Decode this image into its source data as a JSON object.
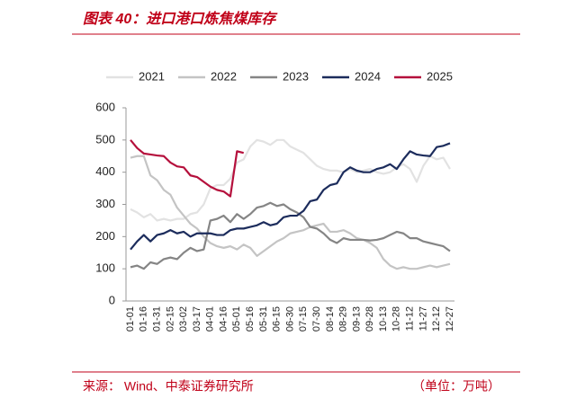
{
  "chart_data": {
    "type": "line",
    "title": "图表 40：进口港口炼焦煤库存",
    "source": "来源： Wind、中泰证券研究所",
    "unit_note": "（单位：万吨）",
    "categories": [
      "01-01",
      null,
      "01-16",
      null,
      "01-31",
      null,
      "02-15",
      null,
      "03-02",
      null,
      "03-17",
      null,
      "04-01",
      null,
      "04-16",
      null,
      "05-01",
      null,
      "05-16",
      null,
      "05-31",
      null,
      "06-15",
      null,
      "06-30",
      null,
      "07-15",
      null,
      "07-30",
      null,
      "08-14",
      null,
      "08-29",
      null,
      "09-13",
      null,
      "09-28",
      null,
      "10-13",
      null,
      "10-28",
      null,
      "11-12",
      null,
      "11-27",
      null,
      "12-12",
      null,
      "12-27"
    ],
    "ylim": [
      0,
      600
    ],
    "yticks": [
      0,
      100,
      200,
      300,
      400,
      500,
      600
    ],
    "legend": "top",
    "series": [
      {
        "name": "2021",
        "color": "#e2e2e2",
        "values": [
          285,
          275,
          260,
          270,
          250,
          255,
          250,
          255,
          255,
          270,
          275,
          300,
          350,
          360,
          360,
          380,
          430,
          440,
          480,
          500,
          495,
          485,
          500,
          500,
          480,
          470,
          460,
          440,
          420,
          410,
          405,
          405,
          400,
          410,
          400,
          405,
          410,
          400,
          395,
          400,
          415,
          425,
          410,
          370,
          420,
          450,
          440,
          445,
          410
        ]
      },
      {
        "name": "2022",
        "color": "#c4c4c4",
        "values": [
          445,
          450,
          450,
          390,
          375,
          345,
          330,
          290,
          265,
          240,
          225,
          200,
          180,
          170,
          165,
          170,
          160,
          175,
          165,
          140,
          155,
          170,
          185,
          195,
          210,
          215,
          220,
          230,
          235,
          240,
          215,
          215,
          220,
          210,
          195,
          190,
          180,
          165,
          130,
          110,
          100,
          105,
          100,
          100,
          105,
          110,
          105,
          110,
          115
        ]
      },
      {
        "name": "2023",
        "color": "#858585",
        "values": [
          105,
          110,
          100,
          120,
          115,
          130,
          135,
          130,
          150,
          165,
          155,
          160,
          250,
          255,
          265,
          245,
          270,
          255,
          270,
          290,
          295,
          305,
          295,
          300,
          285,
          275,
          260,
          230,
          225,
          210,
          190,
          180,
          195,
          190,
          190,
          190,
          188,
          190,
          195,
          205,
          215,
          210,
          195,
          195,
          185,
          180,
          175,
          170,
          155
        ]
      },
      {
        "name": "2024",
        "color": "#1c2c5c",
        "values": [
          160,
          185,
          205,
          185,
          205,
          210,
          220,
          210,
          215,
          200,
          210,
          210,
          210,
          205,
          205,
          220,
          225,
          225,
          230,
          235,
          245,
          235,
          240,
          260,
          265,
          265,
          280,
          310,
          315,
          345,
          360,
          365,
          400,
          415,
          405,
          400,
          400,
          410,
          415,
          425,
          410,
          440,
          465,
          455,
          452,
          450,
          478,
          482,
          490
        ]
      },
      {
        "name": "2025",
        "color": "#b5103c",
        "values": [
          500,
          475,
          458,
          455,
          452,
          450,
          430,
          418,
          415,
          390,
          385,
          370,
          355,
          345,
          340,
          325,
          465,
          460,
          null,
          null,
          null,
          null,
          null,
          null,
          null,
          null,
          null,
          null,
          null,
          null,
          null,
          null,
          null,
          null,
          null,
          null,
          null,
          null,
          null,
          null,
          null,
          null,
          null,
          null,
          null,
          null,
          null,
          null,
          null
        ]
      }
    ]
  }
}
